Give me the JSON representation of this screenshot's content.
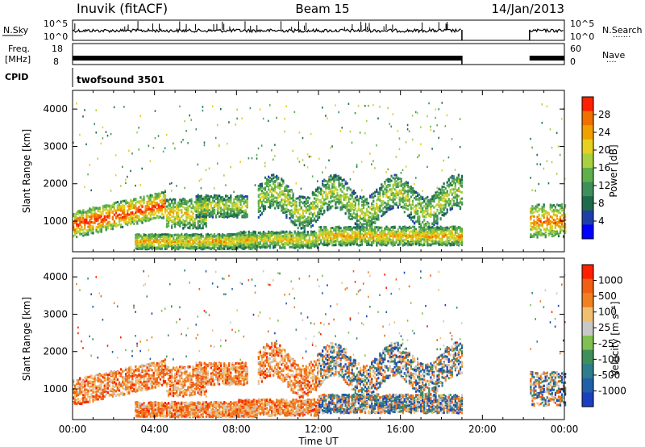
{
  "header": {
    "station": "Inuvik (fitACF)",
    "beam": "Beam 15",
    "date": "14/Jan/2013"
  },
  "noise_panel": {
    "left_label": "N.Sky",
    "right_label": "N.Search",
    "right_dots": "·······",
    "left_ticks": [
      "10^5",
      "10^0"
    ],
    "right_ticks": [
      "10^5",
      "10^0"
    ]
  },
  "freq_panel": {
    "left_label_1": "Freq.",
    "left_label_2": "[MHz]",
    "left_ticks": [
      "18",
      "8"
    ],
    "right_label": "Nave",
    "right_dots": "····",
    "right_ticks": [
      "60",
      "0"
    ]
  },
  "cpid": {
    "label": "CPID",
    "value": "twofsound 3501"
  },
  "chart_data": [
    {
      "type": "heatmap",
      "title": "",
      "xlabel": "Time UT",
      "ylabel": "Slant Range [km]",
      "x_ticks": [
        "00:00",
        "04:00",
        "08:00",
        "12:00",
        "16:00",
        "20:00",
        "00:00"
      ],
      "y_ticks": [
        "1000",
        "2000",
        "3000",
        "4000"
      ],
      "xlim_hours": [
        0,
        24
      ],
      "ylim_km": [
        180,
        4500
      ],
      "data_gap_hours": [
        19,
        22.3
      ],
      "colorbar": {
        "label": "Power [dB]",
        "ticks": [
          "28",
          "24",
          "20",
          "16",
          "12",
          "8",
          "4"
        ],
        "range": [
          0,
          32
        ],
        "colors": [
          "#0000ff",
          "#1f3fa8",
          "#1e6b4b",
          "#3f8f5a",
          "#5fb04a",
          "#a8d040",
          "#e6d020",
          "#f0a000",
          "#f07000",
          "#ff2000"
        ]
      }
    },
    {
      "type": "heatmap",
      "title": "",
      "xlabel": "Time UT",
      "ylabel": "Slant Range [km]",
      "x_ticks": [
        "00:00",
        "04:00",
        "08:00",
        "12:00",
        "16:00",
        "20:00",
        "00:00"
      ],
      "y_ticks": [
        "1000",
        "2000",
        "3000",
        "4000"
      ],
      "xlim_hours": [
        0,
        24
      ],
      "ylim_km": [
        180,
        4500
      ],
      "data_gap_hours": [
        19,
        22.3
      ],
      "colorbar": {
        "label": "Velocity [m s⁻¹]",
        "ticks": [
          "1000",
          "500",
          "100",
          "25",
          "-25",
          "-100",
          "-500",
          "-1000"
        ],
        "colors": [
          "#1c3fbf",
          "#2060a8",
          "#2e7d8c",
          "#3f8f5a",
          "#7fc050",
          "#c8c8c8",
          "#f0c070",
          "#f08020",
          "#f06010",
          "#ff2000"
        ]
      }
    }
  ],
  "x_axis_label": "Time UT"
}
